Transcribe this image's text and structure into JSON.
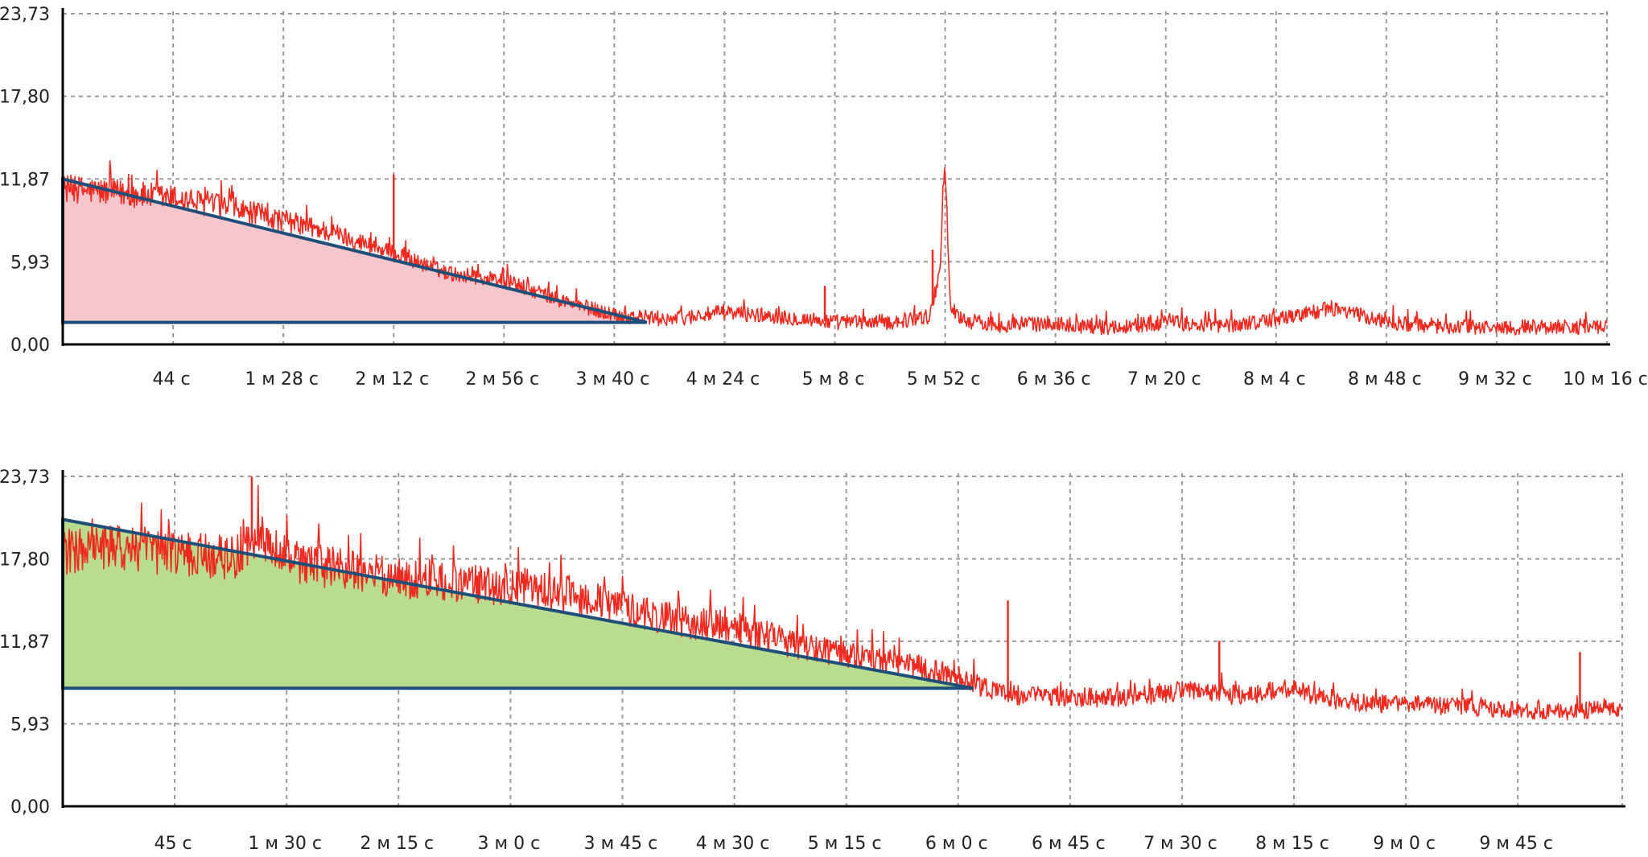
{
  "colors": {
    "signal": "#ee2a20",
    "triangle_edge": "#1f4e79",
    "top_fill": "#f7c6cc",
    "bottom_fill": "#b9dc8f",
    "grid": "#9a9a9a"
  },
  "chart_data": [
    {
      "type": "line",
      "title": "",
      "xlabel": "",
      "ylabel": "",
      "ylim": [
        0,
        23.73
      ],
      "xlim_seconds": [
        0,
        616
      ],
      "y_ticks": [
        "0,00",
        "5,93",
        "11,87",
        "17,80",
        "23,73"
      ],
      "y_tick_values": [
        0,
        5.93,
        11.87,
        17.8,
        23.73
      ],
      "x_ticks": [
        "44 с",
        "1 м 28 с",
        "2 м 12 с",
        "2 м 56 с",
        "3 м 40 с",
        "4 м 24 с",
        "5 м 8 с",
        "5 м 52 с",
        "6 м 36 с",
        "7 м 20 с",
        "8 м 4 с",
        "8 м 48 с",
        "9 м 32 с",
        "10 м 16 с"
      ],
      "x_tick_seconds": [
        44,
        88,
        132,
        176,
        220,
        264,
        308,
        352,
        396,
        440,
        484,
        528,
        572,
        616
      ],
      "grid": true,
      "series": [
        {
          "color": "#ee2a20",
          "x_seconds": [
            0,
            20,
            44,
            66,
            88,
            110,
            132,
            154,
            176,
            198,
            220,
            242,
            264,
            286,
            308,
            330,
            346,
            350,
            352,
            354,
            360,
            374,
            396,
            418,
            440,
            462,
            484,
            506,
            528,
            550,
            572,
            594,
            616
          ],
          "values": [
            11.2,
            10.9,
            10.5,
            9.8,
            8.9,
            7.9,
            6.5,
            5.1,
            4.6,
            3.2,
            2.1,
            1.8,
            2.3,
            2.0,
            1.6,
            1.6,
            2.0,
            5.5,
            13.6,
            2.6,
            1.7,
            1.4,
            1.5,
            1.2,
            1.6,
            1.3,
            1.8,
            2.6,
            1.6,
            1.3,
            1.2,
            1.3,
            1.2
          ]
        }
      ],
      "spikes": [
        {
          "x_seconds": 132,
          "value": 12.2
        },
        {
          "x_seconds": 304,
          "value": 4.2
        },
        {
          "x_seconds": 347,
          "value": 6.8
        },
        {
          "x_seconds": 352,
          "value": 13.6
        }
      ],
      "triangle": {
        "apex_x_seconds": 0,
        "apex_value": 11.87,
        "end_x_seconds": 233,
        "base_value": 1.58,
        "fill": "#f7c6cc"
      }
    },
    {
      "type": "line",
      "title": "",
      "xlabel": "",
      "ylabel": "",
      "ylim": [
        0,
        23.73
      ],
      "xlim_seconds": [
        0,
        627
      ],
      "y_ticks": [
        "0,00",
        "5,93",
        "11,87",
        "17,80",
        "23,73"
      ],
      "y_tick_values": [
        0,
        5.93,
        11.87,
        17.8,
        23.73
      ],
      "x_ticks": [
        "45 с",
        "1 м 30 с",
        "2 м 15 с",
        "3 м 0 с",
        "3 м 45 с",
        "4 м 30 с",
        "5 м 15 с",
        "6 м 0 с",
        "6 м 45 с",
        "7 м 30 с",
        "8 м 15 с",
        "9 м 0 с",
        "9 м 45 с"
      ],
      "x_tick_seconds": [
        45,
        90,
        135,
        180,
        225,
        270,
        315,
        360,
        405,
        450,
        495,
        540,
        585
      ],
      "grid": true,
      "series": [
        {
          "color": "#ee2a20",
          "x_seconds": [
            0,
            25,
            45,
            70,
            78,
            90,
            115,
            135,
            160,
            180,
            205,
            225,
            250,
            270,
            295,
            315,
            340,
            360,
            380,
            405,
            425,
            450,
            470,
            495,
            515,
            540,
            560,
            585,
            605,
            627
          ],
          "values": [
            18.3,
            18.6,
            18.2,
            17.9,
            19.5,
            17.6,
            17.0,
            16.4,
            16.0,
            15.9,
            15.2,
            14.3,
            13.2,
            12.9,
            11.6,
            11.0,
            10.2,
            9.3,
            8.0,
            7.9,
            7.8,
            8.3,
            8.0,
            8.4,
            7.5,
            7.3,
            7.2,
            6.9,
            6.8,
            7.1
          ]
        }
      ],
      "spikes": [
        {
          "x_seconds": 76,
          "value": 23.7
        },
        {
          "x_seconds": 380,
          "value": 14.8
        },
        {
          "x_seconds": 465,
          "value": 11.9
        },
        {
          "x_seconds": 610,
          "value": 11.1
        }
      ],
      "triangle": {
        "apex_x_seconds": 0,
        "apex_value": 20.63,
        "end_x_seconds": 366,
        "base_value": 8.49,
        "fill": "#b9dc8f"
      }
    }
  ]
}
